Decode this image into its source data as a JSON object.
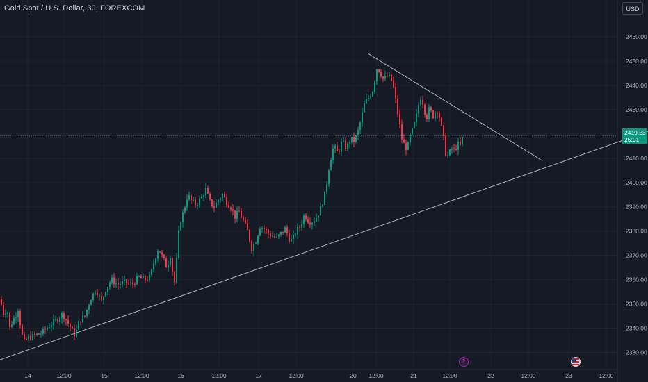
{
  "header": {
    "title": "Gold Spot / U.S. Dollar, 30, FOREXCOM"
  },
  "currency_button": {
    "label": "USD"
  },
  "price_badge": {
    "price": "2419.23",
    "countdown": "25:01"
  },
  "colors": {
    "background": "#161a25",
    "up": "#089981",
    "down": "#f23645",
    "grid": "#1f2330",
    "trendline": "#b2b5be"
  },
  "events": [
    {
      "icon": "lightning-event-icon"
    },
    {
      "icon": "us-flag-event-icon"
    }
  ],
  "chart_data": {
    "type": "candlestick",
    "y_axis": {
      "ticks": [
        "2330.00",
        "2340.00",
        "2350.00",
        "2360.00",
        "2370.00",
        "2380.00",
        "2390.00",
        "2400.00",
        "2410.00",
        "2420.00",
        "2430.00",
        "2440.00",
        "2450.00",
        "2460.00"
      ],
      "range": [
        2327,
        2466
      ],
      "position": "right"
    },
    "x_axis": {
      "ticks": [
        "14",
        "12:00",
        "15",
        "12:00",
        "16",
        "12:00",
        "17",
        "12:00",
        "20",
        "12:00",
        "21",
        "12:00",
        "22",
        "12:00",
        "23",
        "12:00"
      ]
    },
    "grid": true,
    "last_price": 2419.23,
    "path": [
      [
        0,
        2352
      ],
      [
        6,
        2345
      ],
      [
        10,
        2349
      ],
      [
        14,
        2340
      ],
      [
        18,
        2343
      ],
      [
        22,
        2345
      ],
      [
        26,
        2348
      ],
      [
        30,
        2340
      ],
      [
        34,
        2334
      ],
      [
        40,
        2336
      ],
      [
        50,
        2337
      ],
      [
        60,
        2338
      ],
      [
        70,
        2341
      ],
      [
        80,
        2343
      ],
      [
        90,
        2346
      ],
      [
        100,
        2341
      ],
      [
        108,
        2337
      ],
      [
        114,
        2343
      ],
      [
        122,
        2345
      ],
      [
        130,
        2352
      ],
      [
        138,
        2356
      ],
      [
        146,
        2351
      ],
      [
        152,
        2356
      ],
      [
        160,
        2360
      ],
      [
        170,
        2358
      ],
      [
        180,
        2359
      ],
      [
        190,
        2358
      ],
      [
        200,
        2361
      ],
      [
        208,
        2360
      ],
      [
        216,
        2361
      ],
      [
        222,
        2368
      ],
      [
        228,
        2373
      ],
      [
        234,
        2369
      ],
      [
        240,
        2365
      ],
      [
        246,
        2371
      ],
      [
        250,
        2356
      ],
      [
        254,
        2368
      ],
      [
        258,
        2383
      ],
      [
        264,
        2388
      ],
      [
        270,
        2395
      ],
      [
        276,
        2392
      ],
      [
        282,
        2391
      ],
      [
        290,
        2394
      ],
      [
        296,
        2397
      ],
      [
        302,
        2392
      ],
      [
        308,
        2390
      ],
      [
        314,
        2393
      ],
      [
        320,
        2395
      ],
      [
        326,
        2392
      ],
      [
        332,
        2390
      ],
      [
        338,
        2386
      ],
      [
        344,
        2388
      ],
      [
        350,
        2384
      ],
      [
        356,
        2380
      ],
      [
        362,
        2373
      ],
      [
        368,
        2376
      ],
      [
        374,
        2382
      ],
      [
        380,
        2381
      ],
      [
        386,
        2379
      ],
      [
        392,
        2378
      ],
      [
        398,
        2377
      ],
      [
        404,
        2379
      ],
      [
        410,
        2381
      ],
      [
        416,
        2377
      ],
      [
        420,
        2376
      ],
      [
        426,
        2380
      ],
      [
        432,
        2382
      ],
      [
        438,
        2387
      ],
      [
        444,
        2384
      ],
      [
        450,
        2384
      ],
      [
        456,
        2386
      ],
      [
        462,
        2390
      ],
      [
        468,
        2396
      ],
      [
        474,
        2408
      ],
      [
        480,
        2415
      ],
      [
        486,
        2412
      ],
      [
        492,
        2417
      ],
      [
        498,
        2414
      ],
      [
        504,
        2418
      ],
      [
        510,
        2417
      ],
      [
        516,
        2422
      ],
      [
        520,
        2427
      ],
      [
        524,
        2432
      ],
      [
        530,
        2435
      ],
      [
        536,
        2438
      ],
      [
        542,
        2447
      ],
      [
        546,
        2446
      ],
      [
        552,
        2442
      ],
      [
        556,
        2444
      ],
      [
        562,
        2443
      ],
      [
        566,
        2439
      ],
      [
        570,
        2432
      ],
      [
        574,
        2425
      ],
      [
        578,
        2418
      ],
      [
        582,
        2415
      ],
      [
        586,
        2414
      ],
      [
        590,
        2419
      ],
      [
        594,
        2422
      ],
      [
        598,
        2426
      ],
      [
        602,
        2432
      ],
      [
        606,
        2436
      ],
      [
        610,
        2430
      ],
      [
        614,
        2427
      ],
      [
        618,
        2431
      ],
      [
        622,
        2427
      ],
      [
        626,
        2429
      ],
      [
        630,
        2430
      ],
      [
        634,
        2424
      ],
      [
        638,
        2418
      ],
      [
        642,
        2410
      ],
      [
        646,
        2412
      ],
      [
        650,
        2414
      ],
      [
        654,
        2413
      ],
      [
        658,
        2416
      ],
      [
        662,
        2415
      ],
      [
        666,
        2419.23
      ]
    ],
    "trendlines": [
      {
        "name": "ascending-support",
        "from": [
          0,
          2327
        ],
        "to": [
          932,
          2421
        ]
      },
      {
        "name": "descending-resistance",
        "from": [
          530,
          2453
        ],
        "to": [
          780,
          2409
        ]
      }
    ]
  }
}
